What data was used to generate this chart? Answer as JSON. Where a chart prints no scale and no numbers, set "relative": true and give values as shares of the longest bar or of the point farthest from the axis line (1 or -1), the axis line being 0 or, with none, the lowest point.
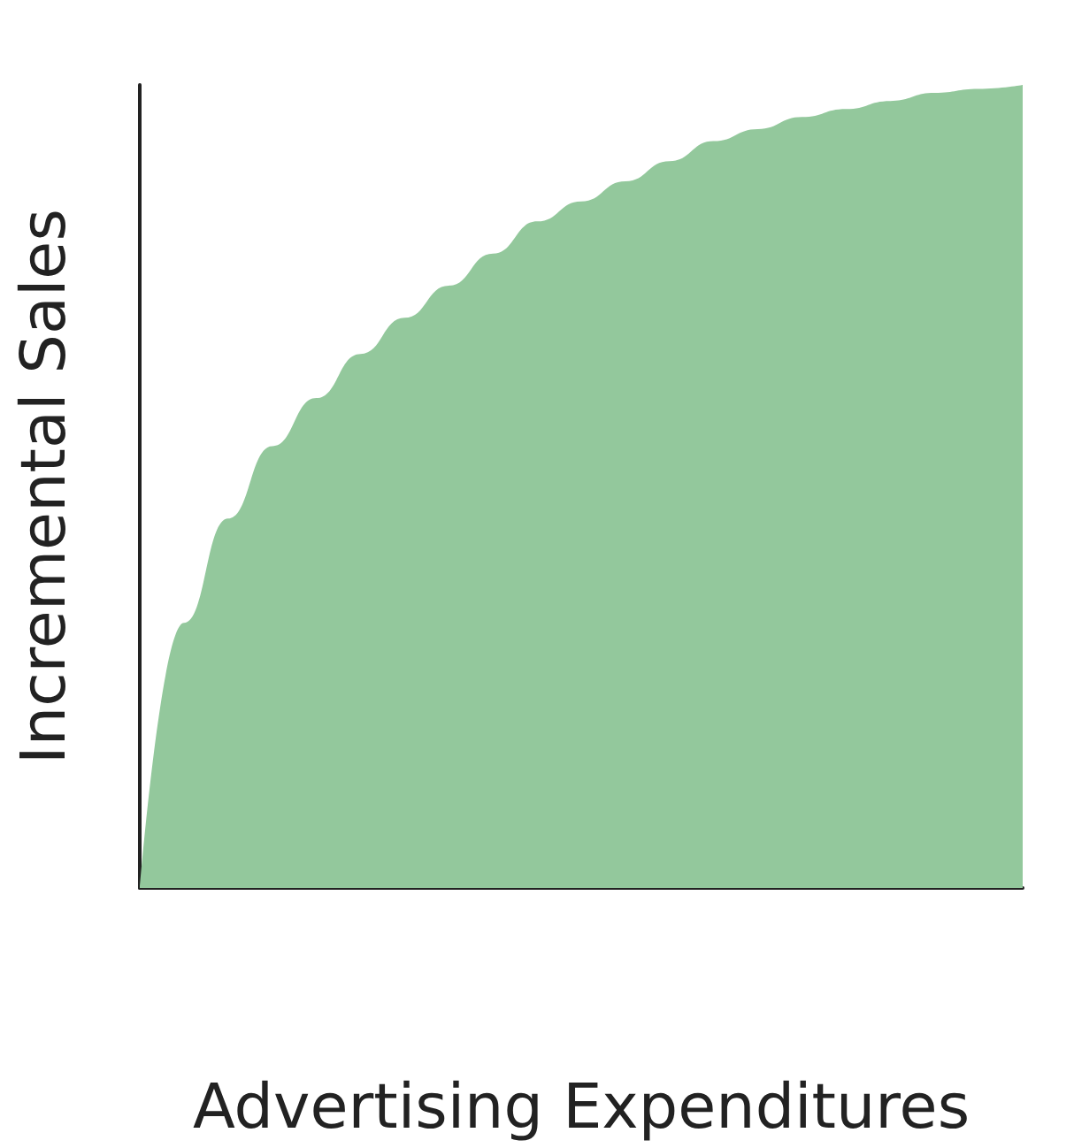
{
  "chart_data": {
    "type": "area",
    "relative": true,
    "xlabel": "Advertising Expenditures",
    "ylabel": "Incremental Sales",
    "categories": [
      null,
      null,
      null,
      null,
      null,
      null,
      null,
      null,
      null,
      null,
      null,
      null,
      null,
      null,
      null,
      null,
      null,
      null,
      null,
      null,
      null
    ],
    "series": [
      {
        "color": "#93c89c",
        "values": [
          0,
          0.33,
          0.46,
          0.55,
          0.61,
          0.665,
          0.71,
          0.75,
          0.79,
          0.83,
          0.855,
          0.88,
          0.905,
          0.93,
          0.945,
          0.96,
          0.97,
          0.98,
          0.99,
          0.995,
          1
        ]
      }
    ],
    "grid": false,
    "marker": "none"
  }
}
